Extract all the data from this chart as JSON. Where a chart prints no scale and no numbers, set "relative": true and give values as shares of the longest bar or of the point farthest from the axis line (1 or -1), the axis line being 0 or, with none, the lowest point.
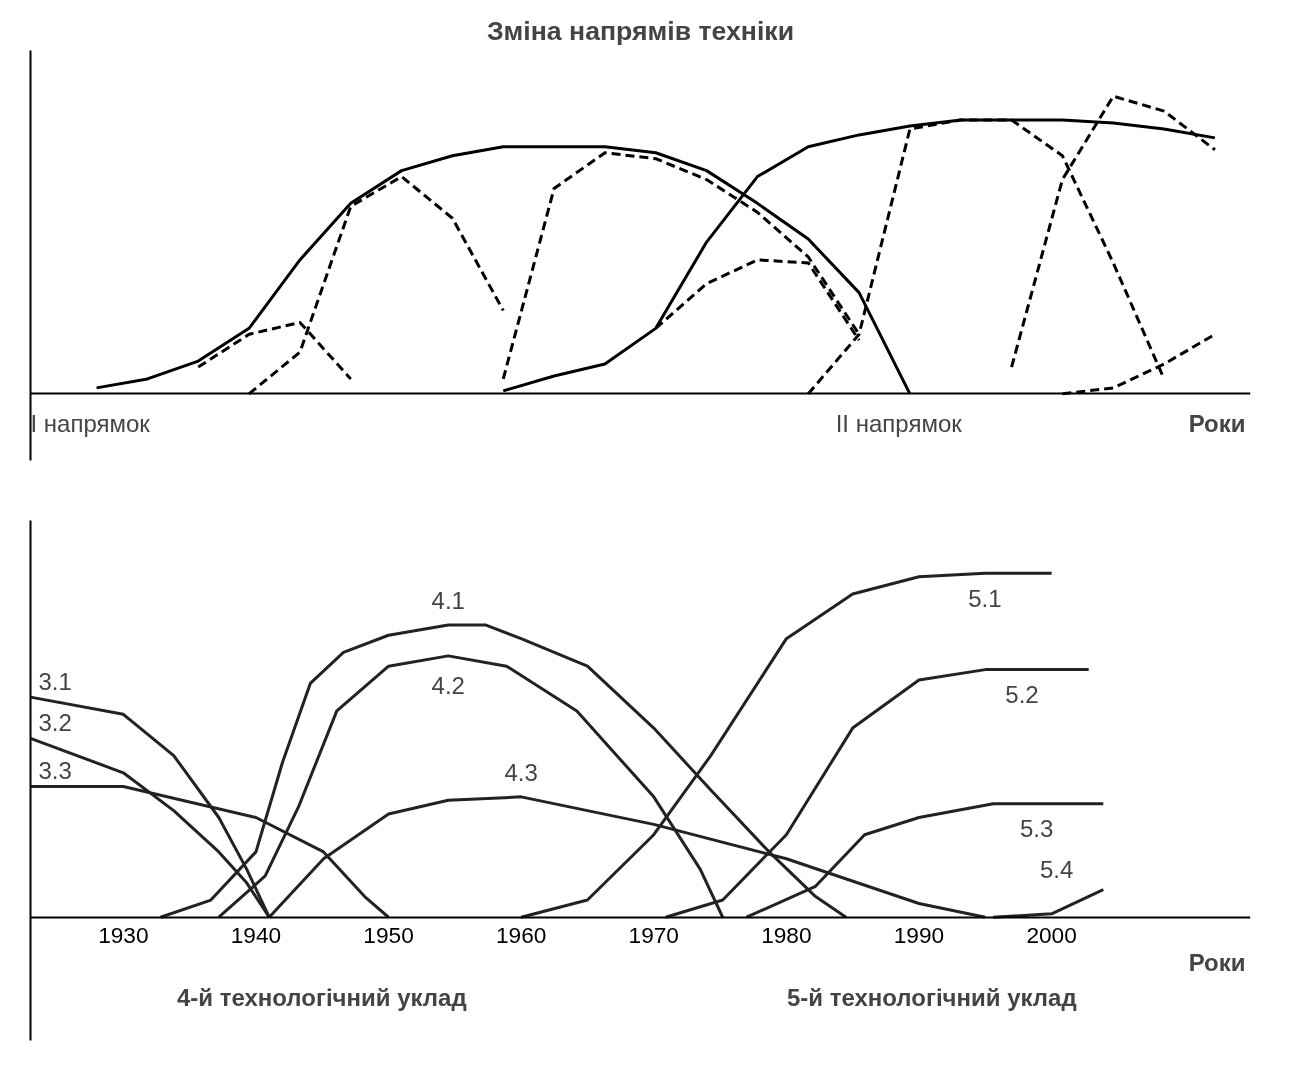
{
  "chart_data": [
    {
      "type": "line",
      "title": "Зміна напрямів техніки",
      "xlabel": "Роки",
      "relative": true,
      "tick_labels": false,
      "annotations": [
        "І напрямок",
        "ІІ напрямок"
      ],
      "categories": [
        null,
        null,
        null,
        null,
        null,
        null,
        null,
        null,
        null,
        null,
        null,
        null,
        null,
        null,
        null,
        null,
        null,
        null,
        null,
        null,
        null,
        null,
        null,
        null
      ],
      "series": [
        {
          "color": "#000000",
          "line_style": "solid",
          "values": [
            null,
            0.02,
            0.05,
            0.11,
            0.22,
            0.45,
            0.64,
            0.75,
            0.8,
            0.83,
            0.83,
            0.83,
            0.81,
            0.75,
            0.64,
            0.52,
            0.34,
            0,
            null,
            null,
            null,
            null,
            null,
            null
          ]
        },
        {
          "color": "#000000",
          "line_style": "dashed",
          "values": [
            null,
            null,
            null,
            0.09,
            0.2,
            0.24,
            0.05,
            null,
            null,
            null,
            null,
            null,
            null,
            null,
            null,
            null,
            null,
            null,
            null,
            null,
            null,
            null,
            null,
            null
          ]
        },
        {
          "color": "#000000",
          "line_style": "dashed",
          "values": [
            null,
            null,
            null,
            null,
            0,
            0.14,
            0.63,
            0.73,
            0.59,
            0.28,
            null,
            null,
            null,
            null,
            null,
            null,
            null,
            null,
            null,
            null,
            null,
            null,
            null,
            null
          ]
        },
        {
          "color": "#000000",
          "line_style": "dashed",
          "values": [
            null,
            null,
            null,
            null,
            null,
            null,
            null,
            null,
            null,
            0.05,
            0.69,
            0.81,
            0.79,
            0.72,
            0.61,
            0.46,
            0.2,
            null,
            null,
            null,
            null,
            null,
            null,
            null
          ]
        },
        {
          "color": "#000000",
          "line_style": "solid",
          "values": [
            null,
            null,
            null,
            null,
            null,
            null,
            null,
            null,
            null,
            0.01,
            0.06,
            0.1,
            0.22,
            0.51,
            0.73,
            0.83,
            0.87,
            0.9,
            0.92,
            0.92,
            0.92,
            0.91,
            0.89,
            0.86
          ]
        },
        {
          "color": "#000000",
          "line_style": "dashed",
          "values": [
            null,
            null,
            null,
            null,
            null,
            null,
            null,
            null,
            null,
            null,
            null,
            null,
            0.22,
            0.37,
            0.45,
            0.44,
            0.18,
            null,
            null,
            null,
            null,
            null,
            null,
            null
          ]
        },
        {
          "color": "#000000",
          "line_style": "dashed",
          "values": [
            null,
            null,
            null,
            null,
            null,
            null,
            null,
            null,
            null,
            null,
            null,
            null,
            null,
            null,
            null,
            0,
            0.2,
            0.89,
            0.92,
            0.92,
            0.8,
            0.44,
            0.05,
            null
          ]
        },
        {
          "color": "#000000",
          "line_style": "dashed",
          "values": [
            null,
            null,
            null,
            null,
            null,
            null,
            null,
            null,
            null,
            null,
            null,
            null,
            null,
            null,
            null,
            null,
            null,
            null,
            null,
            0.09,
            0.72,
            1.0,
            0.95,
            0.82
          ]
        },
        {
          "color": "#000000",
          "line_style": "dashed",
          "values": [
            null,
            null,
            null,
            null,
            null,
            null,
            null,
            null,
            null,
            null,
            null,
            null,
            null,
            null,
            null,
            null,
            null,
            null,
            null,
            null,
            0,
            0.02,
            0.1,
            0.2
          ]
        }
      ]
    },
    {
      "type": "line",
      "xlabel": "Роки",
      "relative": true,
      "tick_labels": "x",
      "xlim": [
        1923,
        2015
      ],
      "xticks": [
        1930,
        1940,
        1950,
        1960,
        1970,
        1980,
        1990,
        2000
      ],
      "annotations": [
        "4-й технологічний уклад",
        "5-й технологічний уклад"
      ],
      "series": [
        {
          "name": "3.1",
          "color": "#222222",
          "x": [
            1923,
            1930,
            1933.8,
            1937.2,
            1939.3,
            1941
          ],
          "values": [
            0.64,
            0.59,
            0.47,
            0.29,
            0.14,
            0
          ]
        },
        {
          "name": "3.2",
          "color": "#222222",
          "x": [
            1923,
            1930,
            1933.8,
            1937.2,
            1939.3,
            1941
          ],
          "values": [
            0.52,
            0.42,
            0.31,
            0.19,
            0.1,
            0
          ]
        },
        {
          "name": "3.3",
          "color": "#222222",
          "x": [
            1923,
            1930,
            1940,
            1945.1,
            1948.2,
            1950
          ],
          "values": [
            0.38,
            0.38,
            0.29,
            0.19,
            0.06,
            0
          ]
        },
        {
          "name": "4.1",
          "color": "#222222",
          "x": [
            1932.8,
            1936.6,
            1940,
            1942,
            1944.1,
            1946.6,
            1950,
            1954.5,
            1957.3,
            1960,
            1965,
            1970,
            1974.3,
            1978.7,
            1982.2,
            1984.5
          ],
          "values": [
            0,
            0.05,
            0.19,
            0.45,
            0.68,
            0.77,
            0.82,
            0.85,
            0.85,
            0.81,
            0.73,
            0.55,
            0.37,
            0.19,
            0.06,
            0
          ]
        },
        {
          "name": "4.2",
          "color": "#222222",
          "x": [
            1937.2,
            1940.7,
            1943.2,
            1946.1,
            1950,
            1954.5,
            1958.9,
            1964.2,
            1970,
            1973.5,
            1975.2
          ],
          "values": [
            0,
            0.12,
            0.32,
            0.6,
            0.73,
            0.76,
            0.73,
            0.6,
            0.35,
            0.14,
            0
          ]
        },
        {
          "name": "4.3",
          "color": "#222222",
          "x": [
            1941,
            1945.1,
            1950,
            1954.5,
            1960,
            1970,
            1980,
            1990,
            1995
          ],
          "values": [
            0,
            0.17,
            0.3,
            0.34,
            0.35,
            0.27,
            0.17,
            0.04,
            0
          ]
        },
        {
          "name": "5.1",
          "color": "#222222",
          "x": [
            1960,
            1965,
            1970,
            1974.3,
            1980,
            1985,
            1990,
            1995,
            2000
          ],
          "values": [
            0,
            0.05,
            0.24,
            0.47,
            0.81,
            0.94,
            0.99,
            1.0,
            1.0
          ]
        },
        {
          "name": "5.2",
          "color": "#222222",
          "x": [
            1970.9,
            1975.2,
            1980,
            1985,
            1990,
            1995,
            2002.8
          ],
          "values": [
            0,
            0.05,
            0.24,
            0.55,
            0.69,
            0.72,
            0.72
          ]
        },
        {
          "name": "5.3",
          "color": "#222222",
          "x": [
            1977,
            1982.2,
            1985.9,
            1990,
            1995.6,
            2003.9
          ],
          "values": [
            0,
            0.09,
            0.24,
            0.29,
            0.33,
            0.33
          ]
        },
        {
          "name": "5.4",
          "color": "#222222",
          "x": [
            1995.6,
            2000,
            2003.9
          ],
          "values": [
            0,
            0.01,
            0.08
          ]
        }
      ]
    }
  ]
}
